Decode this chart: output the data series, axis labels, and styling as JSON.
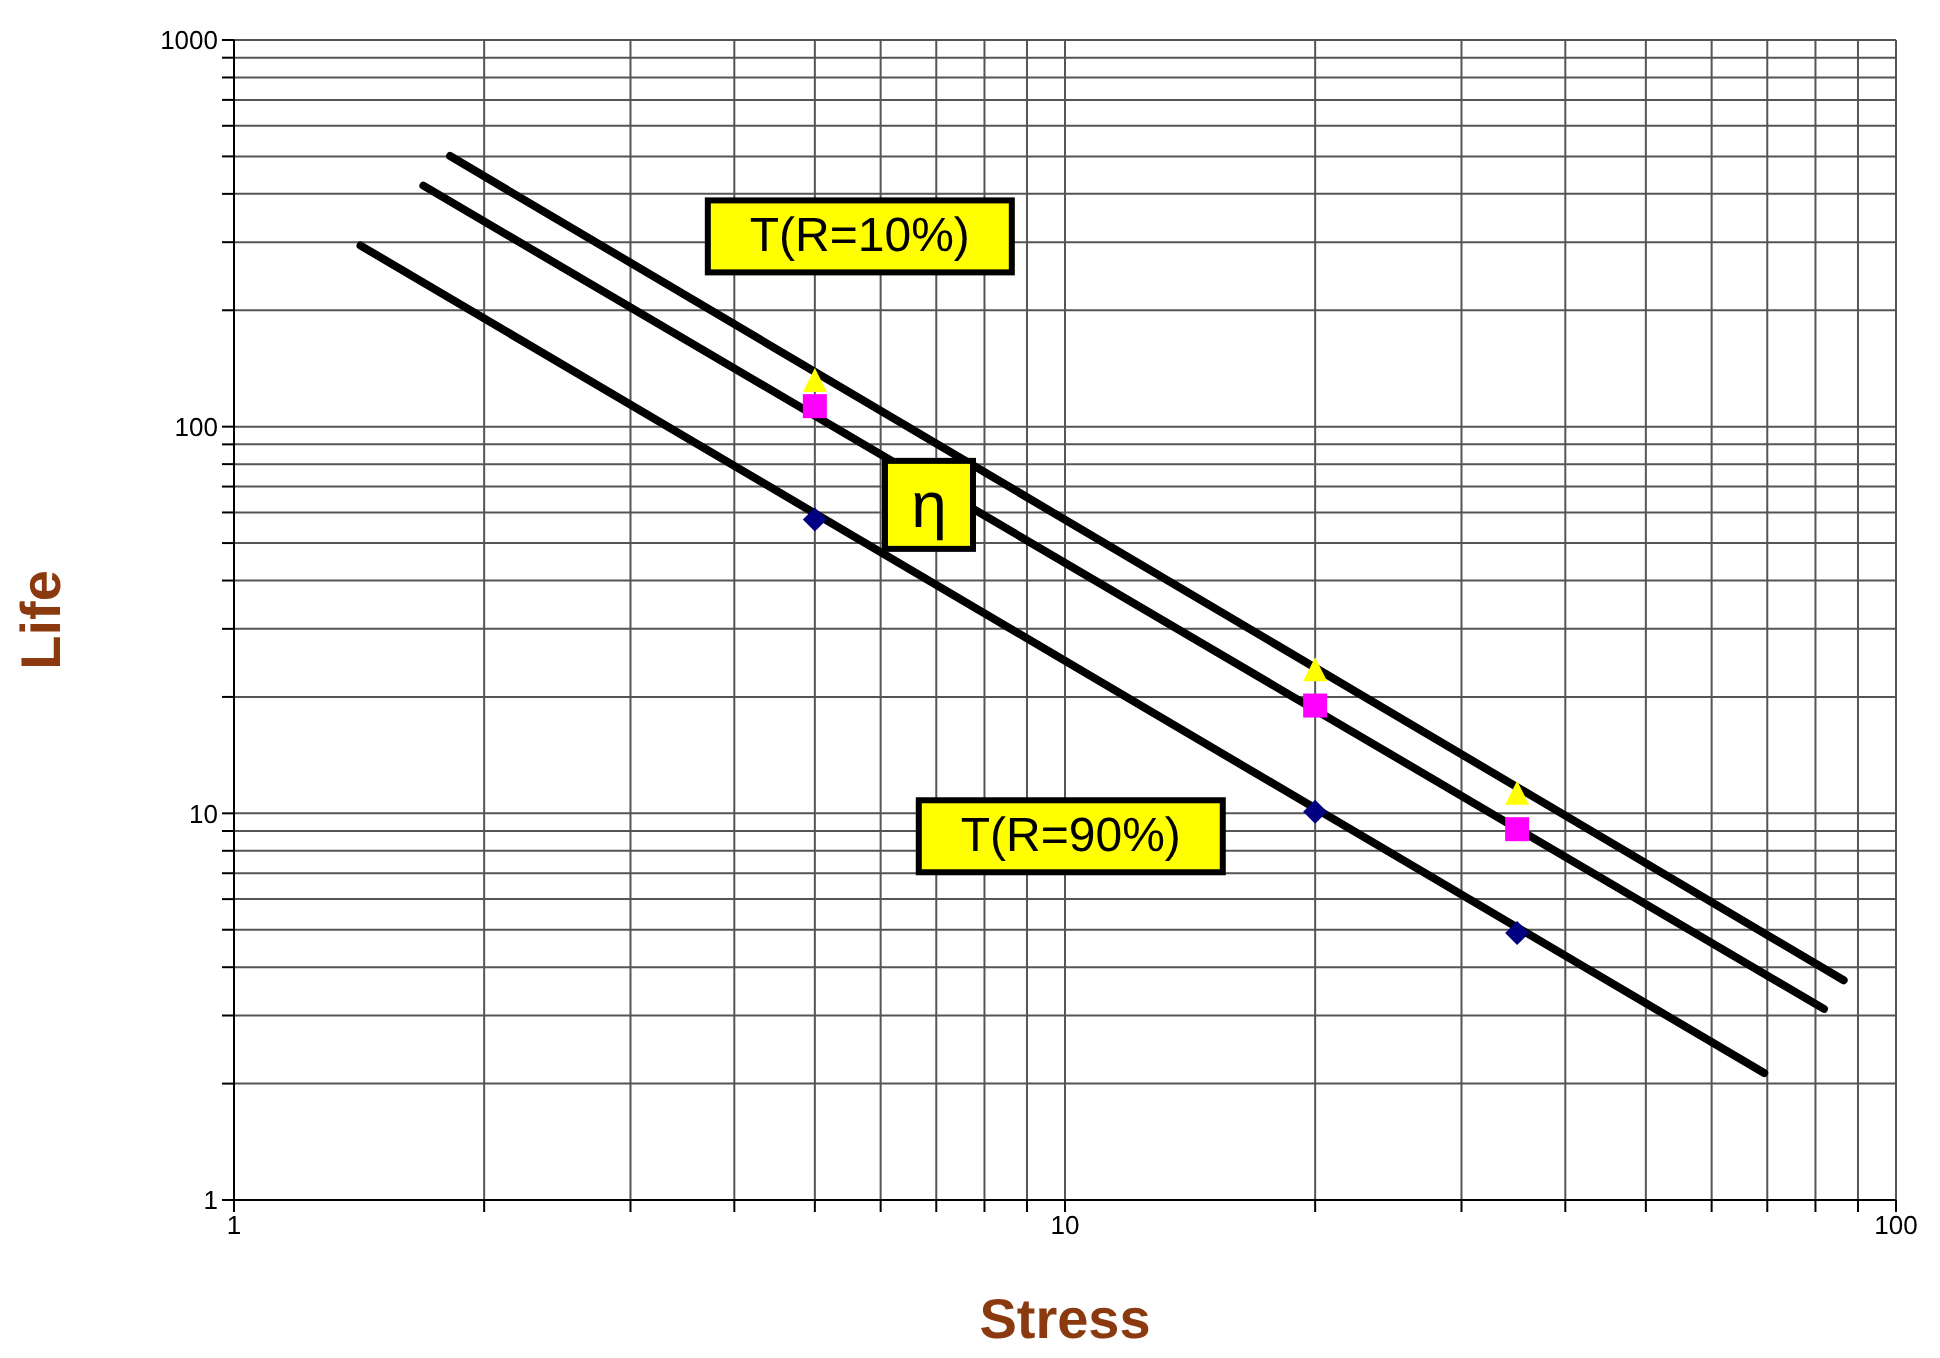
{
  "chart_data": {
    "type": "scatter",
    "xlabel": "Stress",
    "ylabel": "Life",
    "log": "xy",
    "grid": true,
    "legend": false,
    "xlim": [
      1,
      100
    ],
    "ylim": [
      1,
      1000
    ],
    "xticks": [
      1,
      {
        "value": 2,
        "label": null
      },
      {
        "value": 3,
        "label": null
      },
      {
        "value": 4,
        "label": null
      },
      {
        "value": 5,
        "label": null
      },
      {
        "value": 6,
        "label": null
      },
      {
        "value": 7,
        "label": null
      },
      {
        "value": 8,
        "label": null
      },
      {
        "value": 9,
        "label": null
      },
      10,
      {
        "value": 20,
        "label": null
      },
      {
        "value": 30,
        "label": null
      },
      {
        "value": 40,
        "label": null
      },
      {
        "value": 50,
        "label": null
      },
      {
        "value": 60,
        "label": null
      },
      {
        "value": 70,
        "label": null
      },
      {
        "value": 80,
        "label": null
      },
      {
        "value": 90,
        "label": null
      },
      100
    ],
    "yticks": [
      1,
      {
        "value": 2,
        "label": null
      },
      {
        "value": 3,
        "label": null
      },
      {
        "value": 4,
        "label": null
      },
      {
        "value": 5,
        "label": null
      },
      {
        "value": 6,
        "label": null
      },
      {
        "value": 7,
        "label": null
      },
      {
        "value": 8,
        "label": null
      },
      {
        "value": 9,
        "label": null
      },
      10,
      {
        "value": 20,
        "label": null
      },
      {
        "value": 30,
        "label": null
      },
      {
        "value": 40,
        "label": null
      },
      {
        "value": 50,
        "label": null
      },
      {
        "value": 60,
        "label": null
      },
      {
        "value": 70,
        "label": null
      },
      {
        "value": 80,
        "label": null
      },
      {
        "value": 90,
        "label": null
      },
      100,
      {
        "value": 200,
        "label": null
      },
      {
        "value": 300,
        "label": null
      },
      {
        "value": 400,
        "label": null
      },
      {
        "value": 500,
        "label": null
      },
      {
        "value": 600,
        "label": null
      },
      {
        "value": 700,
        "label": null
      },
      {
        "value": 800,
        "label": null
      },
      {
        "value": 900,
        "label": null
      },
      1000
    ],
    "series": [
      {
        "type": "line",
        "name": "T(R=10%)",
        "color": "#000000",
        "x": [
          1.82,
          86.5
        ],
        "values": [
          501,
          3.7
        ],
        "marker": "none"
      },
      {
        "type": "line",
        "name": "η",
        "color": "#000000",
        "x": [
          1.69,
          81.9
        ],
        "values": [
          420,
          3.12
        ],
        "marker": "none"
      },
      {
        "type": "line",
        "name": "T(R=90%)",
        "color": "#000000",
        "x": [
          1.42,
          69.4
        ],
        "values": [
          294,
          2.13
        ],
        "marker": "none"
      },
      {
        "color": "#ffff00",
        "x": [
          5,
          20,
          35
        ],
        "values": [
          132,
          23.6,
          11.3
        ],
        "marker": "triangle"
      },
      {
        "color": "#ff00ff",
        "x": [
          5,
          20,
          35
        ],
        "values": [
          113,
          19,
          9.1
        ],
        "marker": "square"
      },
      {
        "color": "#000080",
        "x": [
          5,
          20,
          35
        ],
        "values": [
          57.5,
          10.1,
          4.9
        ],
        "marker": "diamond"
      }
    ]
  }
}
